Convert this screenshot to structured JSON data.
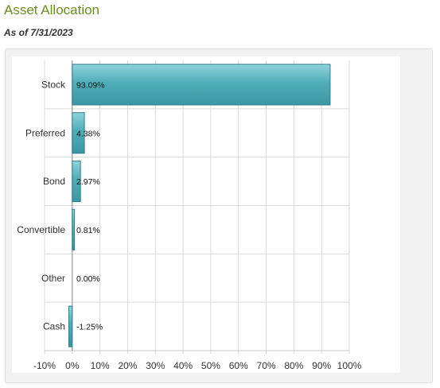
{
  "header": {
    "title": "Asset Allocation",
    "as_of": "As of 7/31/2023"
  },
  "colors": {
    "bar_fill": "#4fadb8",
    "bar_stroke": "#2f7f8a",
    "title_color": "#6b8e23"
  },
  "chart_data": {
    "type": "bar",
    "orientation": "horizontal",
    "categories": [
      "Stock",
      "Preferred",
      "Bond",
      "Convertible",
      "Other",
      "Cash"
    ],
    "values": [
      93.09,
      4.38,
      2.97,
      0.81,
      0.0,
      -1.25
    ],
    "value_labels": [
      "93.09%",
      "4.38%",
      "2.97%",
      "0.81%",
      "0.00%",
      "-1.25%"
    ],
    "xlim": [
      -10,
      100
    ],
    "xticks": [
      -10,
      0,
      10,
      20,
      30,
      40,
      50,
      60,
      70,
      80,
      90,
      100
    ],
    "xtick_labels": [
      "-10%",
      "0%",
      "10%",
      "20%",
      "30%",
      "40%",
      "50%",
      "60%",
      "70%",
      "80%",
      "90%",
      "100%"
    ],
    "grid": true,
    "title": "",
    "xlabel": "",
    "ylabel": ""
  }
}
